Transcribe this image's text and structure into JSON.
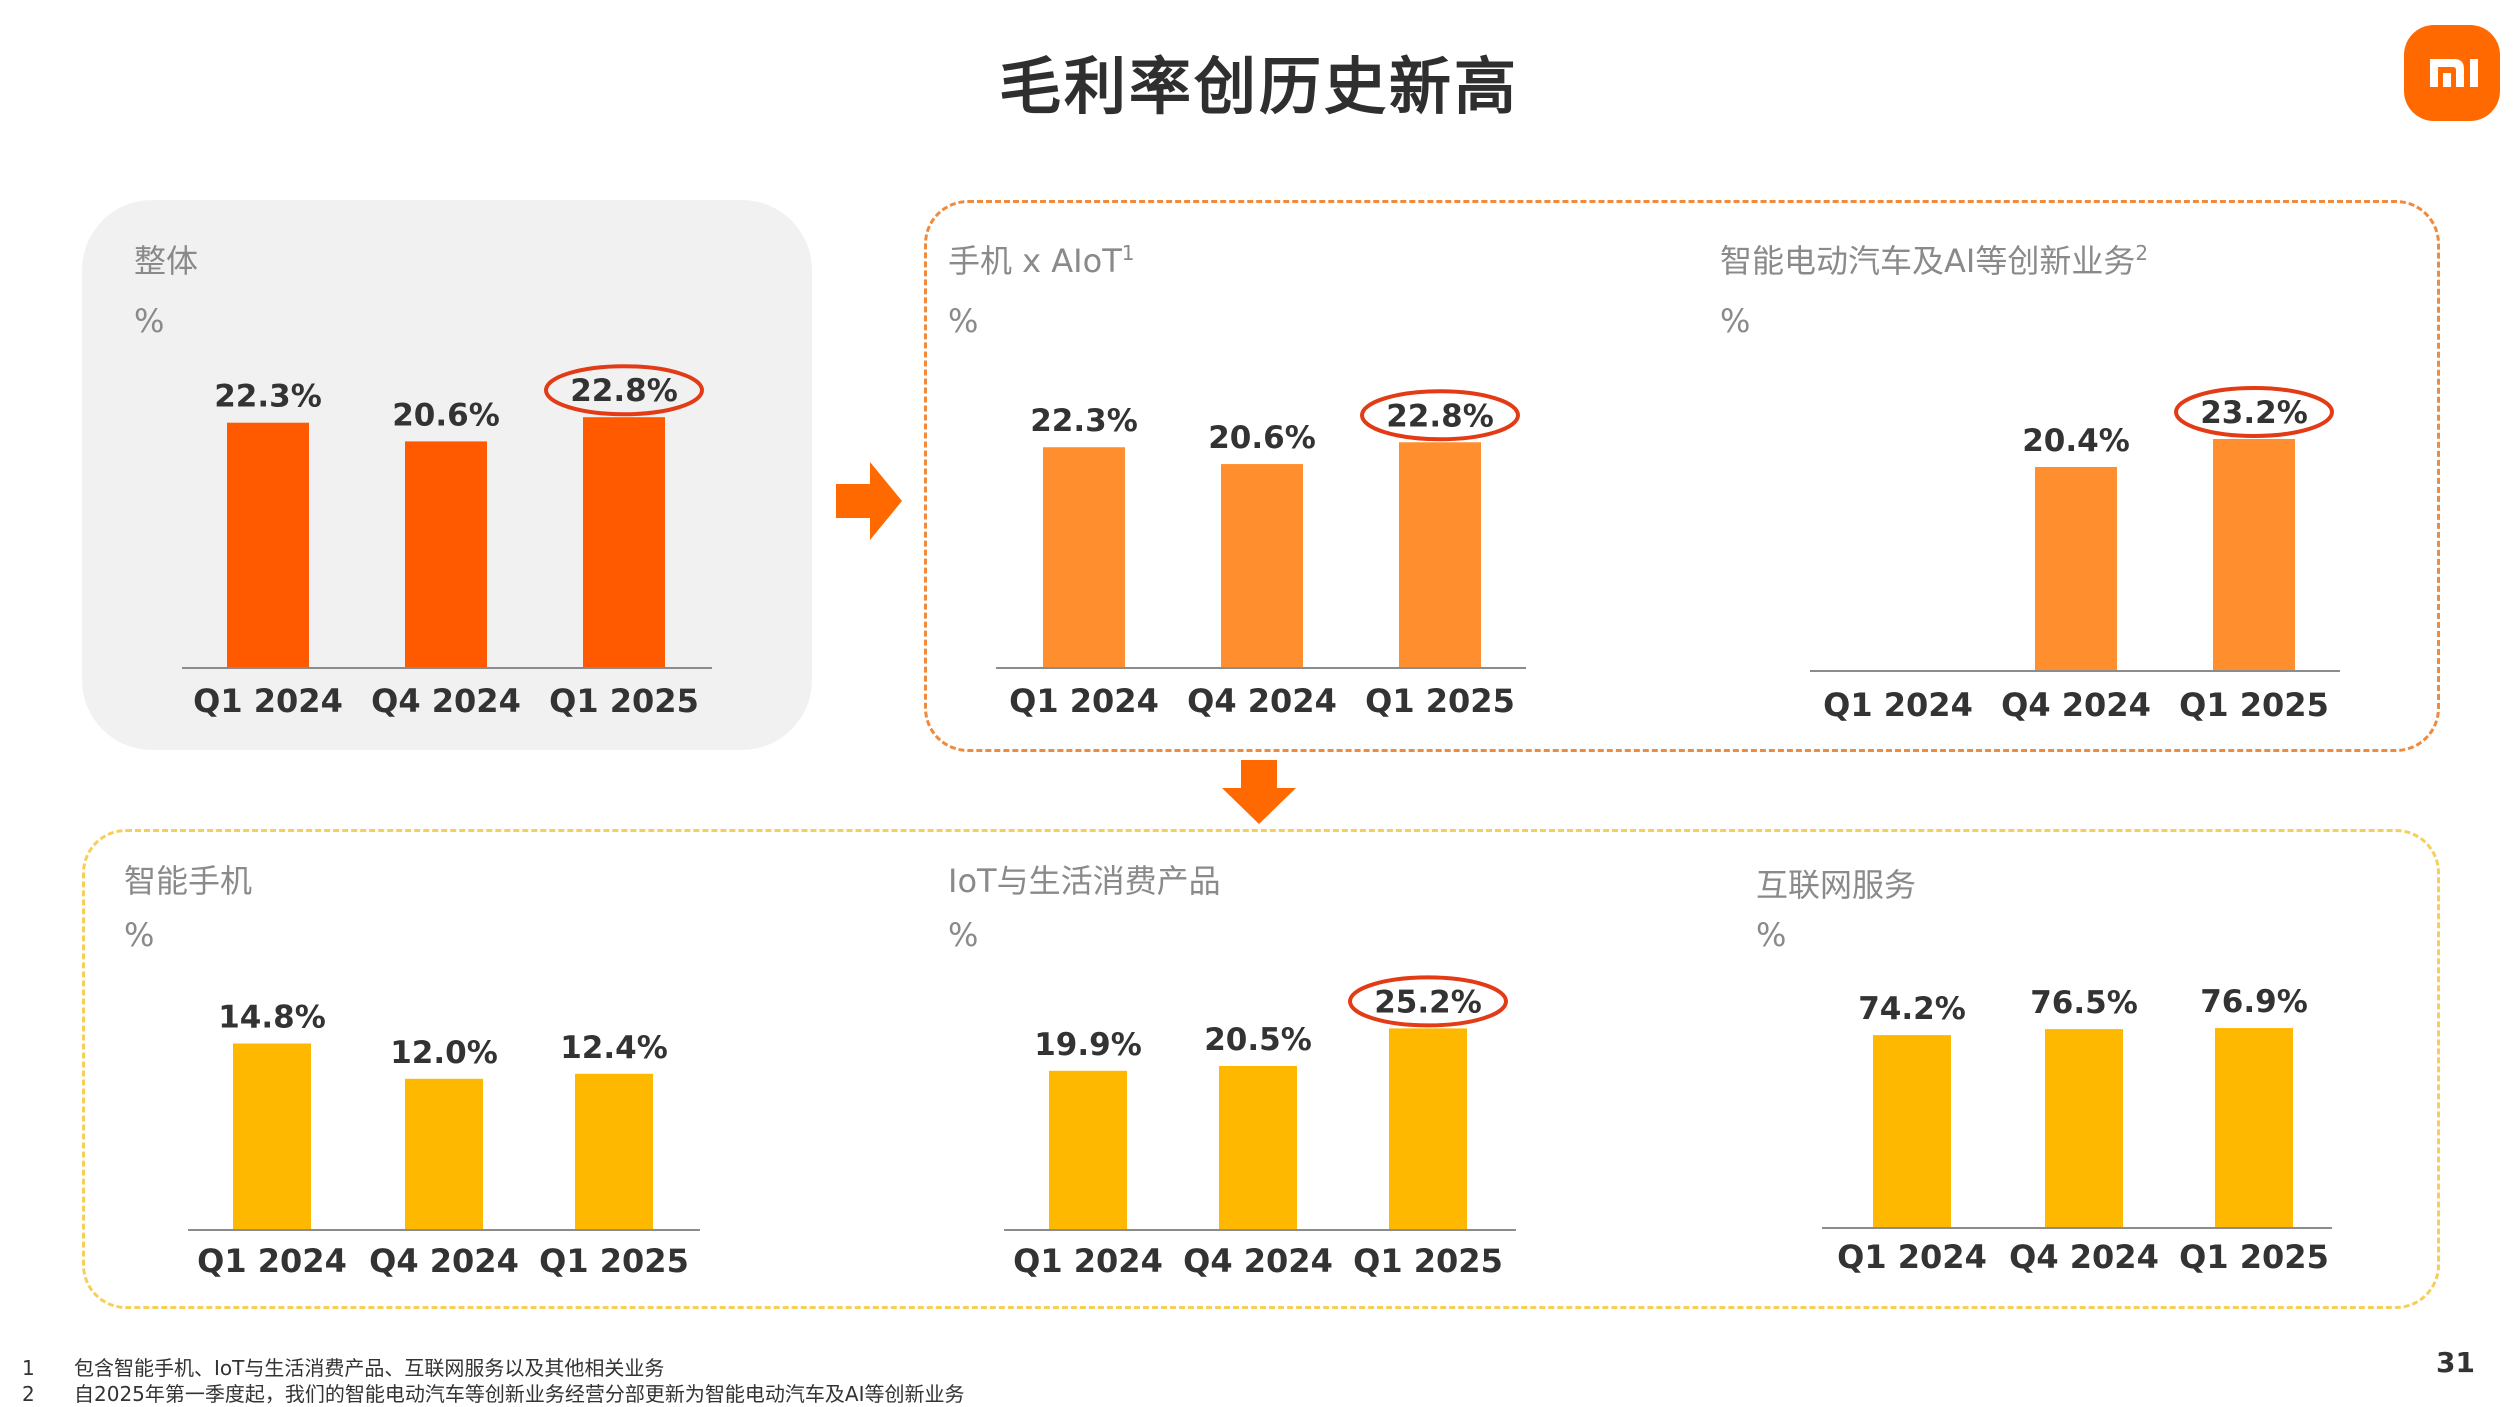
{
  "page_title": "毛利率创历史新高",
  "logo_text": "mi",
  "colors": {
    "brand": "#ff6900",
    "overall_bar": "#ff5a00",
    "segment_bar": "#ff8f2e",
    "sub_bar": "#ffb800",
    "highlight_circle": "#e23b16",
    "orange_dash": "#f08a3c",
    "yellow_dash": "#f6cf5a"
  },
  "chart_data": [
    {
      "id": "overall",
      "type": "bar",
      "title": "整体",
      "ylabel": "%",
      "categories": [
        "Q1 2024",
        "Q4 2024",
        "Q1 2025"
      ],
      "values": [
        22.3,
        20.6,
        22.8
      ],
      "labels": [
        "22.3%",
        "20.6%",
        "22.8%"
      ],
      "highlight": [
        false,
        false,
        true
      ]
    },
    {
      "id": "phone-aiot",
      "type": "bar",
      "title": "手机 x AIoT",
      "title_sup": "1",
      "ylabel": "%",
      "categories": [
        "Q1 2024",
        "Q4 2024",
        "Q1 2025"
      ],
      "values": [
        22.3,
        20.6,
        22.8
      ],
      "labels": [
        "22.3%",
        "20.6%",
        "22.8%"
      ],
      "highlight": [
        false,
        false,
        true
      ]
    },
    {
      "id": "ev-ai",
      "type": "bar",
      "title": "智能电动汽车及AI等创新业务",
      "title_sup": "2",
      "ylabel": "%",
      "categories": [
        "Q1 2024",
        "Q4 2024",
        "Q1 2025"
      ],
      "values": [
        null,
        20.4,
        23.2
      ],
      "labels": [
        "",
        "20.4%",
        "23.2%"
      ],
      "highlight": [
        false,
        false,
        true
      ]
    },
    {
      "id": "smartphone",
      "type": "bar",
      "title": "智能手机",
      "ylabel": "%",
      "categories": [
        "Q1 2024",
        "Q4 2024",
        "Q1 2025"
      ],
      "values": [
        14.8,
        12.0,
        12.4
      ],
      "labels": [
        "14.8%",
        "12.0%",
        "12.4%"
      ],
      "highlight": [
        false,
        false,
        false
      ]
    },
    {
      "id": "iot",
      "type": "bar",
      "title": "IoT与生活消费产品",
      "ylabel": "%",
      "categories": [
        "Q1 2024",
        "Q4 2024",
        "Q1 2025"
      ],
      "values": [
        19.9,
        20.5,
        25.2
      ],
      "labels": [
        "19.9%",
        "20.5%",
        "25.2%"
      ],
      "highlight": [
        false,
        false,
        true
      ]
    },
    {
      "id": "internet",
      "type": "bar",
      "title": "互联网服务",
      "ylabel": "%",
      "categories": [
        "Q1 2024",
        "Q4 2024",
        "Q1 2025"
      ],
      "values": [
        74.2,
        76.5,
        76.9
      ],
      "labels": [
        "74.2%",
        "76.5%",
        "76.9%"
      ],
      "highlight": [
        false,
        false,
        false
      ]
    }
  ],
  "footnotes": [
    {
      "num": "1",
      "text": "包含智能手机、IoT与生活消费产品、互联网服务以及其他相关业务"
    },
    {
      "num": "2",
      "text": "自2025年第一季度起，我们的智能电动汽车等创新业务经营分部更新为智能电动汽车及AI等创新业务"
    }
  ],
  "page_number": "31"
}
